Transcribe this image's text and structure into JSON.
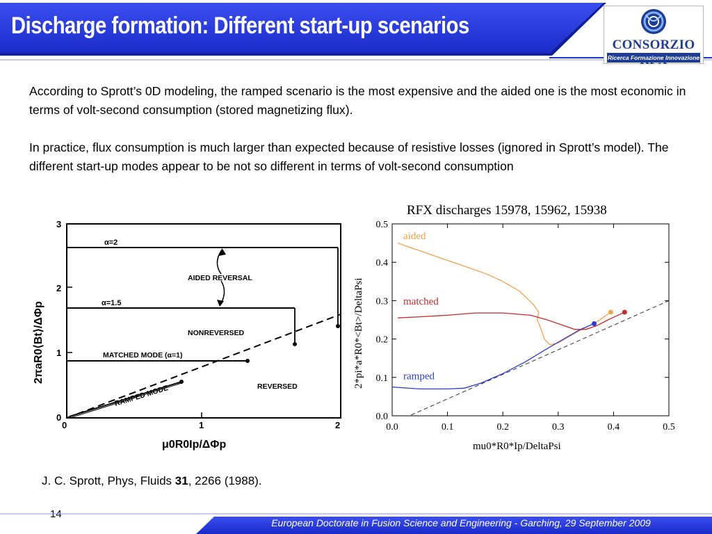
{
  "slide": {
    "title": "Discharge formation: Different start-up scenarios",
    "paragraph1": "According to Sprott’s 0D modeling, the ramped scenario is the most expensive and the aided one is the most economic in terms of volt-second consumption (stored magnetizing flux).",
    "paragraph2": "In practice, flux consumption is much larger than expected because of resistive losses (ignored in Sprott’s model). The different start-up modes appear to be not so different in terms of volt-second consumption",
    "reference": {
      "authors": "J. C. Sprott, Phys, Fluids ",
      "volume": "31",
      "rest": ", 2266 (1988)."
    },
    "page_number": "14",
    "footer": "European Doctorate in Fusion Science and Engineering  -  Garching, 29 September 2009"
  },
  "logo": {
    "name": "CONSORZIO RFX",
    "tagline": "Ricerca Formazione Innovazione"
  },
  "colors": {
    "title_blue": "#1f33d8",
    "footer_blue": "#1f33d8",
    "aided": "#f5a04a",
    "matched": "#c92a2a",
    "ramped": "#2b3bd1",
    "logo_blue": "#1f3c93"
  },
  "chart_data": [
    {
      "type": "line",
      "title": "",
      "xlabel": "μ0R0Ip/ΔΦp",
      "ylabel": "2πaR0⟨Bt⟩/ΔΦp",
      "xlim": [
        0,
        2
      ],
      "ylim": [
        0,
        3
      ],
      "x_ticks": [
        "0",
        "1",
        "2"
      ],
      "y_ticks": [
        "0",
        "1",
        "2",
        "3"
      ],
      "annotations": [
        "α=2",
        "α=1.5",
        "AIDED REVERSAL",
        "NONREVERSED",
        "MATCHED MODE  (α=1)",
        "REVERSED",
        "RAMPED MODE"
      ],
      "series": [
        {
          "x": [
            0,
            2
          ],
          "y": [
            0,
            1.42
          ]
        }
      ]
    },
    {
      "type": "line",
      "title": "RFX discharges 15978, 15962, 15938",
      "xlabel": "mu0*R0*Ip/DeltaPsi",
      "ylabel": "2*pi*a*R0*<Bt>/DeltaPsi",
      "xlim": [
        0.0,
        0.5
      ],
      "ylim": [
        0.0,
        0.5
      ],
      "x_ticks": [
        "0.0",
        "0.1",
        "0.2",
        "0.3",
        "0.4",
        "0.5"
      ],
      "y_ticks": [
        "0.0",
        "0.1",
        "0.2",
        "0.3",
        "0.4",
        "0.5"
      ],
      "grid": false,
      "series": [
        {
          "name": "aided",
          "color": "#f5a04a",
          "x": [
            0.01,
            0.05,
            0.09,
            0.13,
            0.17,
            0.2,
            0.23,
            0.255,
            0.265,
            0.262,
            0.268,
            0.275,
            0.285,
            0.3,
            0.33,
            0.37,
            0.395
          ],
          "y": [
            0.45,
            0.43,
            0.41,
            0.39,
            0.37,
            0.35,
            0.325,
            0.29,
            0.27,
            0.25,
            0.23,
            0.2,
            0.185,
            0.19,
            0.215,
            0.245,
            0.27
          ]
        },
        {
          "name": "matched",
          "color": "#c92a2a",
          "x": [
            0.01,
            0.05,
            0.1,
            0.15,
            0.2,
            0.25,
            0.28,
            0.31,
            0.33,
            0.35,
            0.37,
            0.39,
            0.42
          ],
          "y": [
            0.255,
            0.258,
            0.262,
            0.268,
            0.268,
            0.262,
            0.25,
            0.235,
            0.225,
            0.225,
            0.235,
            0.25,
            0.27
          ]
        },
        {
          "name": "ramped",
          "color": "#2b3bd1",
          "x": [
            0.0,
            0.05,
            0.1,
            0.13,
            0.16,
            0.2,
            0.24,
            0.28,
            0.31,
            0.34,
            0.365
          ],
          "y": [
            0.075,
            0.07,
            0.07,
            0.072,
            0.085,
            0.11,
            0.14,
            0.175,
            0.2,
            0.225,
            0.24
          ]
        }
      ],
      "diagonal": {
        "x": [
          0.0,
          0.5
        ],
        "y": [
          -0.02,
          0.3
        ]
      }
    }
  ]
}
